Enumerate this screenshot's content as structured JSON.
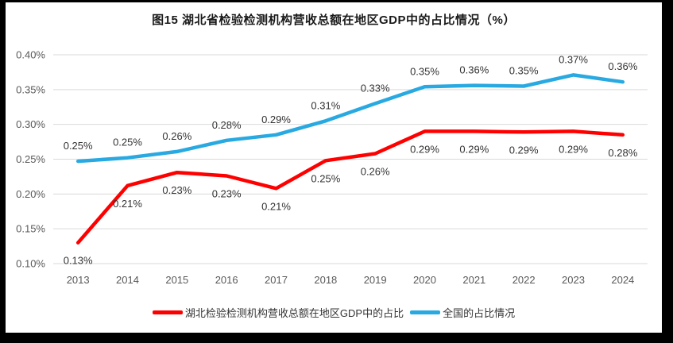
{
  "title": "图15  湖北省检验检测机构营收总额在地区GDP中的占比情况（%）",
  "chart_data": {
    "type": "line",
    "title": "图15  湖北省检验检测机构营收总额在地区GDP中的占比情况（%）",
    "categories": [
      "2013",
      "2014",
      "2015",
      "2016",
      "2017",
      "2018",
      "2019",
      "2020",
      "2021",
      "2022",
      "2023",
      "2024"
    ],
    "series": [
      {
        "name": "湖北检验检测机构营收总额在地区GDP中的占比",
        "color": "#FF0000",
        "values": [
          0.13,
          0.21,
          0.23,
          0.23,
          0.21,
          0.25,
          0.26,
          0.29,
          0.29,
          0.29,
          0.29,
          0.28
        ],
        "labels": [
          "0.13%",
          "0.21%",
          "0.23%",
          "0.23%",
          "0.21%",
          "0.25%",
          "0.26%",
          "0.29%",
          "0.29%",
          "0.29%",
          "0.29%",
          "0.28%"
        ],
        "plot_values": [
          0.13,
          0.212,
          0.231,
          0.226,
          0.208,
          0.248,
          0.258,
          0.29,
          0.29,
          0.289,
          0.29,
          0.285
        ],
        "label_position": "below"
      },
      {
        "name": "全国的占比情况",
        "color": "#29A9E1",
        "values": [
          0.25,
          0.25,
          0.26,
          0.28,
          0.29,
          0.31,
          0.33,
          0.35,
          0.36,
          0.35,
          0.37,
          0.36
        ],
        "labels": [
          "0.25%",
          "0.25%",
          "0.26%",
          "0.28%",
          "0.29%",
          "0.31%",
          "0.33%",
          "0.35%",
          "0.36%",
          "0.35%",
          "0.37%",
          "0.36%"
        ],
        "plot_values": [
          0.247,
          0.252,
          0.261,
          0.277,
          0.285,
          0.305,
          0.33,
          0.354,
          0.356,
          0.355,
          0.371,
          0.361
        ],
        "label_position": "above"
      }
    ],
    "y_axis": {
      "min": 0.1,
      "max": 0.4,
      "ticks": [
        "0.10%",
        "0.15%",
        "0.20%",
        "0.25%",
        "0.30%",
        "0.35%",
        "0.40%"
      ],
      "unit": "%"
    },
    "grid": "horizontal",
    "legend_position": "bottom",
    "colors": {
      "gridline": "#D9D9D9",
      "axis_label": "#595959",
      "data_label": "#333333"
    }
  }
}
